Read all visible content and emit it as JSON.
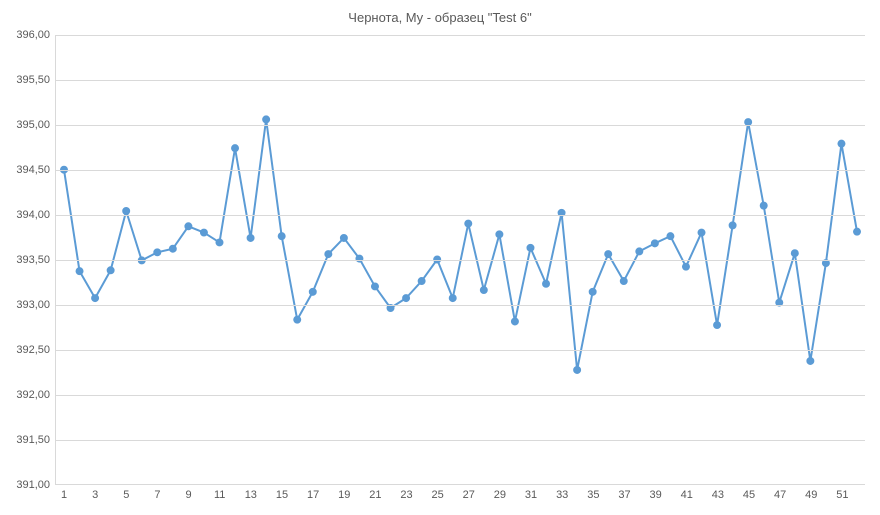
{
  "chart": {
    "type": "line",
    "title": "Чернота, My - образец \"Test 6\"",
    "title_fontsize": 13,
    "title_color": "#595959",
    "background_color": "#ffffff",
    "grid_color": "#d9d9d9",
    "axis_label_color": "#595959",
    "axis_label_fontsize": 11,
    "x": {
      "min": 1,
      "max": 50,
      "tick_step": 2,
      "tick_start": 1
    },
    "y": {
      "min": 391.0,
      "max": 396.0,
      "tick_step": 0.5,
      "decimal_sep": ",",
      "decimals": 2
    },
    "series": {
      "line_color": "#5b9bd5",
      "line_width": 2,
      "marker": "circle",
      "marker_size": 3.5,
      "marker_fill": "#5b9bd5",
      "marker_stroke": "#5b9bd5",
      "values": [
        394.5,
        393.37,
        393.07,
        393.38,
        394.04,
        393.49,
        393.58,
        393.62,
        393.87,
        393.8,
        393.69,
        394.74,
        393.74,
        395.06,
        393.76,
        392.83,
        393.14,
        393.56,
        393.74,
        393.51,
        393.2,
        392.96,
        393.07,
        393.26,
        393.5,
        393.07,
        393.9,
        393.16,
        393.78,
        392.81,
        393.63,
        393.23,
        394.02,
        392.27,
        393.14,
        393.56,
        393.26,
        393.59,
        393.68,
        393.76,
        393.42,
        393.8,
        392.77,
        393.88,
        395.03,
        394.1,
        393.02,
        393.57,
        392.37,
        393.46,
        394.79,
        393.81
      ]
    }
  }
}
